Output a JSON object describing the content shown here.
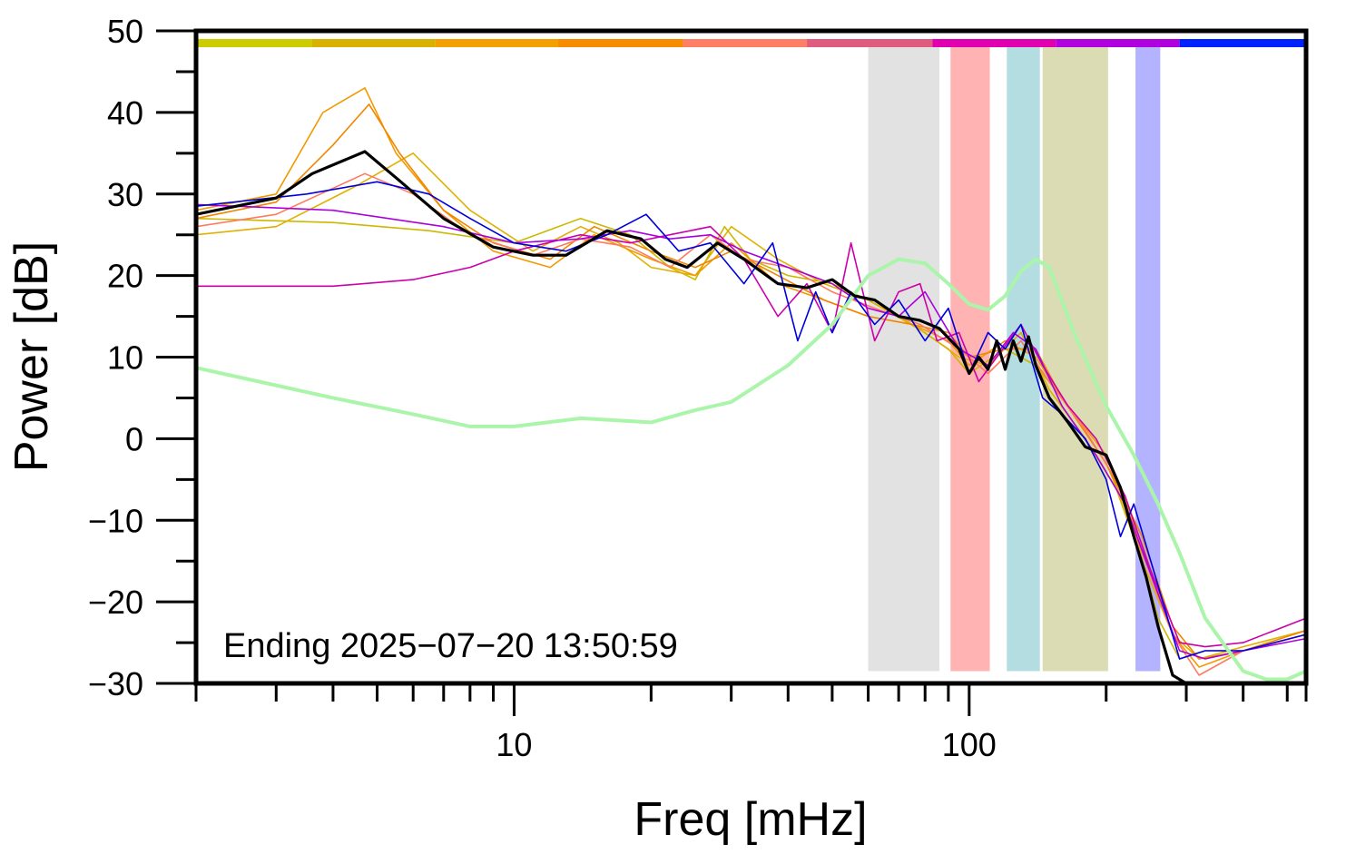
{
  "chart_data": {
    "type": "line",
    "xlabel": "Freq [mHz]",
    "ylabel": "Power [dB]",
    "xscale": "log",
    "xlim": [
      2,
      550
    ],
    "ylim": [
      -30,
      50
    ],
    "grid": false,
    "x_ticks": [
      {
        "value": 10,
        "label": "10"
      },
      {
        "value": 100,
        "label": "100"
      }
    ],
    "y_ticks": [
      {
        "value": 50,
        "label": "50"
      },
      {
        "value": 40,
        "label": "40"
      },
      {
        "value": 30,
        "label": "30"
      },
      {
        "value": 20,
        "label": "20"
      },
      {
        "value": 10,
        "label": "10"
      },
      {
        "value": 0,
        "label": "0"
      },
      {
        "value": -10,
        "label": "−10"
      },
      {
        "value": -20,
        "label": "−20"
      },
      {
        "value": -30,
        "label": "−30"
      }
    ],
    "annotation": "Ending 2025−07−20 13:50:59",
    "time_bar": [
      {
        "x0": 2,
        "x1": 3.6,
        "color": "#cccc00"
      },
      {
        "x0": 3.6,
        "x1": 6.7,
        "color": "#d9b200"
      },
      {
        "x0": 6.7,
        "x1": 12.5,
        "color": "#f2a100"
      },
      {
        "x0": 12.5,
        "x1": 23.5,
        "color": "#f78c00"
      },
      {
        "x0": 23.5,
        "x1": 44,
        "color": "#ff7f66"
      },
      {
        "x0": 44,
        "x1": 83,
        "color": "#e05c7f"
      },
      {
        "x0": 83,
        "x1": 155,
        "color": "#e000b0"
      },
      {
        "x0": 155,
        "x1": 290,
        "color": "#b000e0"
      },
      {
        "x0": 290,
        "x1": 550,
        "color": "#0022ff"
      }
    ],
    "bands": [
      {
        "x0": 60,
        "x1": 86,
        "color": "#e2e2e2"
      },
      {
        "x0": 91,
        "x1": 111,
        "color": "#ffb3b3"
      },
      {
        "x0": 121,
        "x1": 143,
        "color": "#b3dde0"
      },
      {
        "x0": 145,
        "x1": 202,
        "color": "#dcdcb4"
      },
      {
        "x0": 232,
        "x1": 263,
        "color": "#b3b3ff"
      }
    ],
    "series": [
      {
        "color": "#ccb800",
        "width": 1.6,
        "x": [
          2,
          4,
          6.5,
          10,
          14,
          18,
          22,
          25,
          29,
          33,
          40,
          50,
          60,
          75,
          90,
          100,
          120,
          140,
          160,
          200,
          230,
          260,
          290,
          330,
          400,
          550
        ],
        "y": [
          27,
          26.5,
          25.5,
          24,
          27,
          25,
          21,
          19.5,
          26,
          22,
          20,
          19,
          17,
          14,
          11,
          8,
          11,
          9,
          5,
          -3,
          -11,
          -22,
          -27,
          -26,
          -26,
          -24
        ]
      },
      {
        "color": "#e0b000",
        "width": 1.6,
        "x": [
          2,
          3,
          4.5,
          6,
          8,
          11,
          14,
          17,
          20,
          25,
          30,
          38,
          48,
          60,
          80,
          95,
          110,
          130,
          150,
          180,
          210,
          240,
          280,
          320,
          400,
          550
        ],
        "y": [
          25,
          26,
          31,
          35,
          28,
          23,
          26,
          24,
          21,
          20,
          26,
          22,
          19,
          17,
          13,
          10,
          9,
          13,
          6,
          0,
          -6,
          -15,
          -24,
          -27,
          -25.5,
          -23.5
        ]
      },
      {
        "color": "#f29b00",
        "width": 1.6,
        "x": [
          2,
          3,
          3.8,
          4.7,
          5.5,
          7,
          9,
          12,
          15,
          20,
          25,
          30,
          38,
          48,
          60,
          75,
          90,
          100,
          120,
          140,
          160,
          200,
          240,
          280,
          320,
          400,
          550
        ],
        "y": [
          28,
          30,
          40,
          43,
          35,
          28,
          23,
          21,
          25,
          22,
          20,
          24,
          19,
          17,
          15,
          14,
          12,
          9,
          12,
          10,
          5,
          -2,
          -13,
          -24,
          -28,
          -26,
          -24
        ]
      },
      {
        "color": "#f28500",
        "width": 1.6,
        "x": [
          2,
          3,
          4,
          4.8,
          5.6,
          7,
          9,
          12,
          15,
          20,
          25,
          30,
          38,
          48,
          60,
          75,
          90,
          100,
          120,
          140,
          160,
          200,
          240,
          280,
          320,
          400,
          550
        ],
        "y": [
          27,
          29,
          36,
          41,
          35,
          28,
          24,
          22,
          26,
          23,
          21,
          23,
          20,
          17,
          15,
          14,
          13,
          10,
          11,
          11,
          5,
          -3,
          -12,
          -23,
          -27,
          -26,
          -23.5
        ]
      },
      {
        "color": "#ff7a5e",
        "width": 1.6,
        "x": [
          2,
          3,
          4.7,
          6,
          8,
          11,
          14,
          18,
          22,
          27,
          32,
          40,
          50,
          62,
          78,
          95,
          110,
          130,
          150,
          180,
          210,
          240,
          280,
          320,
          400,
          550
        ],
        "y": [
          26,
          27.5,
          32.5,
          30,
          25,
          22.5,
          24.5,
          23.5,
          21,
          25,
          22,
          21,
          18,
          16,
          14,
          11,
          8,
          12,
          7,
          1,
          -5,
          -14,
          -24,
          -29,
          -26,
          -24
        ]
      },
      {
        "color": "#cc00aa",
        "width": 1.6,
        "x": [
          2,
          4,
          6,
          8,
          10,
          14,
          18,
          22,
          27,
          32,
          38,
          44,
          50,
          55,
          62,
          70,
          78,
          85,
          95,
          105,
          115,
          130,
          145,
          165,
          190,
          220,
          250,
          290,
          330,
          400,
          550
        ],
        "y": [
          18.7,
          18.7,
          19.5,
          21,
          23,
          25,
          24,
          25,
          26,
          22,
          15,
          19,
          13,
          24,
          12,
          18,
          19,
          12,
          13,
          7,
          10,
          14,
          9,
          4,
          0,
          -7,
          -16,
          -25,
          -25.5,
          -25,
          -22
        ]
      },
      {
        "color": "#aa00dd",
        "width": 1.6,
        "x": [
          2,
          4,
          7,
          10,
          14,
          18,
          22,
          27,
          32,
          40,
          50,
          60,
          70,
          80,
          95,
          110,
          125,
          140,
          160,
          190,
          220,
          260,
          290,
          330,
          400,
          550
        ],
        "y": [
          28.7,
          28,
          26,
          24,
          24.5,
          25.5,
          24.5,
          25,
          23,
          21,
          19,
          16,
          15,
          18,
          11,
          9,
          13,
          11,
          4,
          -2,
          -8,
          -19,
          -26,
          -27,
          -26,
          -24.5
        ]
      },
      {
        "color": "#0000dd",
        "width": 1.6,
        "x": [
          2,
          3.5,
          5,
          6.5,
          8,
          10,
          13,
          16,
          19.5,
          23,
          27,
          32,
          37,
          42,
          46,
          50,
          55,
          62,
          70,
          80,
          90,
          100,
          110,
          120,
          130,
          145,
          160,
          180,
          200,
          215,
          230,
          260,
          290,
          330,
          400,
          550
        ],
        "y": [
          28.5,
          30,
          31.5,
          30,
          27,
          24,
          23,
          25,
          27.5,
          23,
          24,
          19,
          24,
          12,
          18,
          13,
          18,
          14,
          17,
          12,
          16,
          8,
          13,
          11,
          14,
          5,
          3,
          0,
          -5,
          -12,
          -8,
          -18,
          -27,
          -26,
          -26,
          -24
        ]
      },
      {
        "color": "#aaf5aa",
        "width": 4,
        "x": [
          2,
          4,
          6,
          8,
          10,
          14,
          20,
          25,
          30,
          40,
          50,
          60,
          70,
          80,
          90,
          100,
          110,
          120,
          130,
          140,
          150,
          170,
          200,
          230,
          260,
          290,
          330,
          400,
          450,
          500,
          550
        ],
        "y": [
          8.7,
          5,
          3,
          1.5,
          1.5,
          2.5,
          2,
          3.5,
          4.5,
          9,
          14,
          20,
          22,
          21.5,
          19,
          16.5,
          15.8,
          17.5,
          20.5,
          22,
          21,
          13,
          4,
          -2,
          -8,
          -14,
          -22,
          -28.5,
          -29.5,
          -29.5,
          -28.5
        ]
      },
      {
        "color": "#000000",
        "width": 3.2,
        "x": [
          2,
          3,
          3.6,
          4.7,
          5.5,
          7,
          9,
          11,
          13,
          16,
          19,
          21.5,
          24,
          28,
          32,
          38,
          44,
          50,
          56,
          62,
          70,
          78,
          86,
          95,
          100,
          105,
          110,
          115,
          120,
          125,
          130,
          135,
          140,
          150,
          165,
          180,
          200,
          215,
          230,
          245,
          260,
          280,
          300,
          550
        ],
        "y": [
          27.5,
          29.5,
          32.5,
          35.2,
          32,
          27,
          23.5,
          22.5,
          22.5,
          25.5,
          24.5,
          22,
          21,
          24,
          22,
          19,
          18.5,
          19.5,
          17.5,
          17,
          15,
          14.5,
          13.5,
          11,
          8,
          10,
          8.5,
          12,
          8.5,
          12,
          9.5,
          12.5,
          9,
          5,
          2,
          -1,
          -2,
          -6,
          -12,
          -17,
          -23,
          -29,
          -30,
          -30
        ]
      }
    ]
  }
}
